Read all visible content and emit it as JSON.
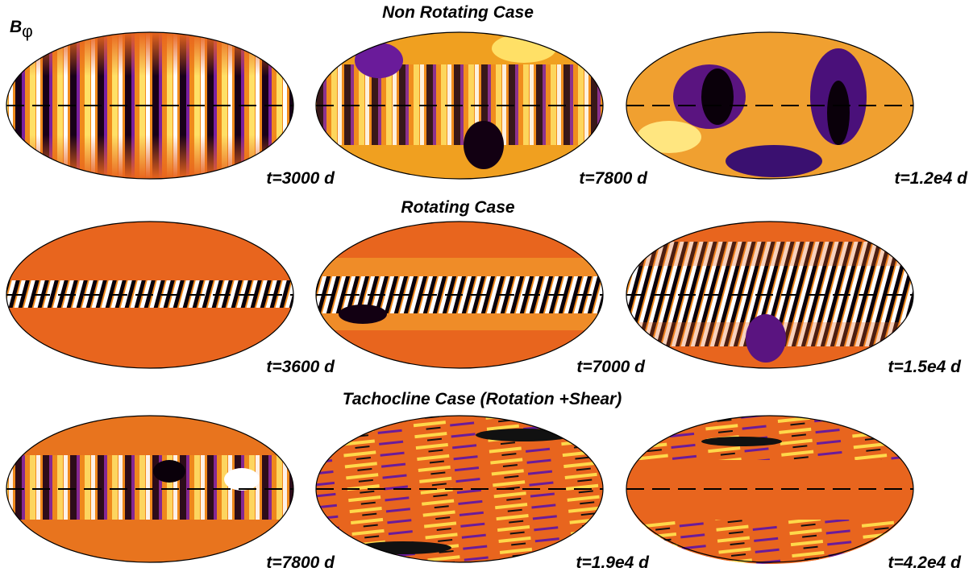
{
  "symbol": {
    "main": "B",
    "subscript": "φ"
  },
  "rows": [
    {
      "title": "Non Rotating Case",
      "panels": [
        {
          "time": "t=3000 d"
        },
        {
          "time": "t=7800 d"
        },
        {
          "time": "t=1.2e4 d"
        }
      ]
    },
    {
      "title": "Rotating Case",
      "panels": [
        {
          "time": "t=3600 d"
        },
        {
          "time": "t=7000 d"
        },
        {
          "time": "t=1.5e4 d"
        }
      ]
    },
    {
      "title": "Tachocline Case (Rotation +Shear)",
      "panels": [
        {
          "time": "t=7800 d"
        },
        {
          "time": "t=1.9e4 d"
        },
        {
          "time": "t=4.2e4 d"
        }
      ]
    }
  ]
}
